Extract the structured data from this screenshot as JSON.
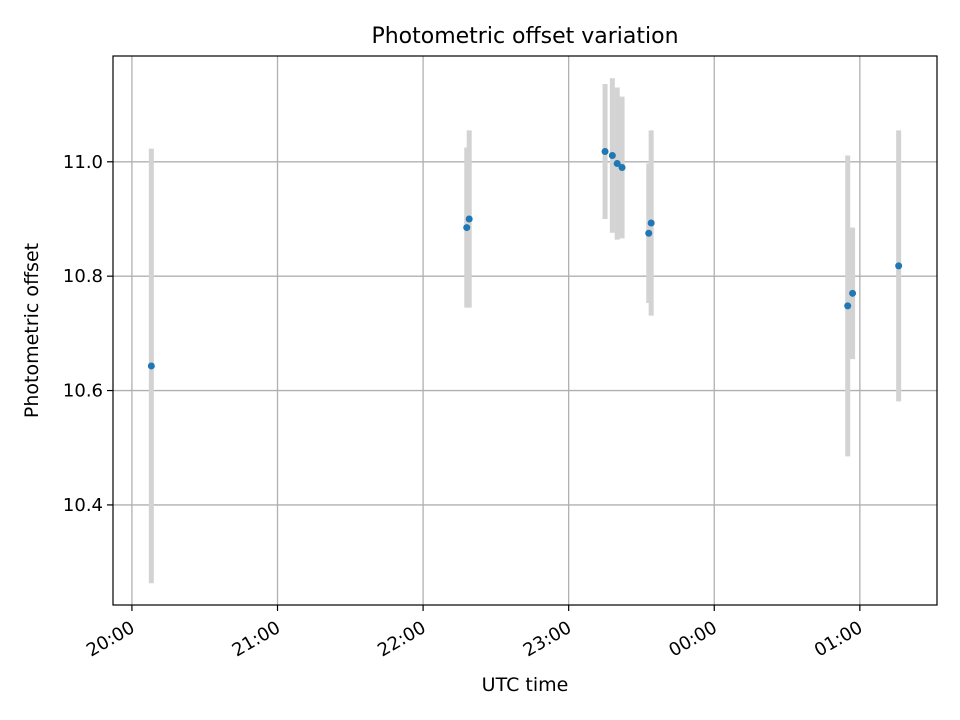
{
  "chart_data": {
    "type": "scatter",
    "title": "Photometric offset variation",
    "xlabel": "UTC time",
    "ylabel": "Photometric offset",
    "x_tick_labels": [
      "20:00",
      "21:00",
      "22:00",
      "23:00",
      "00:00",
      "01:00"
    ],
    "x_tick_hours": [
      0,
      1,
      2,
      3,
      4,
      5
    ],
    "xlim_hours_after_20": [
      -0.13,
      5.53
    ],
    "y_ticks": [
      10.4,
      10.6,
      10.8,
      11.0
    ],
    "y_tick_labels": [
      "10.4",
      "10.6",
      "10.8",
      "11.0"
    ],
    "ylim": [
      10.225,
      11.185
    ],
    "grid": true,
    "colors": {
      "point": "#1f77b4",
      "errorbar": "#d3d3d3",
      "grid": "#b0b0b0",
      "axes": "#000000"
    },
    "points": [
      {
        "t": "20:08",
        "y": 10.643,
        "err": 0.38
      },
      {
        "t": "22:18",
        "y": 10.885,
        "err": 0.14
      },
      {
        "t": "22:19",
        "y": 10.9,
        "err": 0.155
      },
      {
        "t": "23:15",
        "y": 11.018,
        "err": 0.118
      },
      {
        "t": "23:18",
        "y": 11.011,
        "err": 0.135
      },
      {
        "t": "23:20",
        "y": 10.997,
        "err": 0.133
      },
      {
        "t": "23:22",
        "y": 10.99,
        "err": 0.124
      },
      {
        "t": "23:33",
        "y": 10.875,
        "err": 0.122
      },
      {
        "t": "23:34",
        "y": 10.893,
        "err": 0.162
      },
      {
        "t": "00:55",
        "y": 10.748,
        "err": 0.263
      },
      {
        "t": "00:57",
        "y": 10.77,
        "err": 0.115
      },
      {
        "t": "01:16",
        "y": 10.818,
        "err": 0.237
      }
    ]
  }
}
